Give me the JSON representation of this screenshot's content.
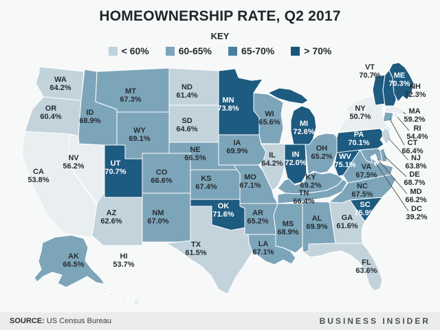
{
  "title": "HOMEOWNERSHIP RATE, Q2 2017",
  "key": {
    "label": "KEY",
    "bins": [
      {
        "label": "< 60%",
        "color": "#c0d2dc"
      },
      {
        "label": "60-65%",
        "color": "#7ca4ba"
      },
      {
        "label": "65-70%",
        "color": "#4a7ea0"
      },
      {
        "label": "> 70%",
        "color": "#1a567b"
      }
    ]
  },
  "footer": {
    "source_label": "SOURCE:",
    "source": "US Census Bureau",
    "brand": "BUSINESS INSIDER"
  },
  "colors": {
    "background": "#f7f8f8",
    "footer_bg": "#ebecec",
    "map_bands": [
      "#e9eef0",
      "#c2d3dc",
      "#7da5ba",
      "#1e5b80"
    ],
    "state_border": "#ffffff",
    "label_dark": "#262c31",
    "label_light": "#ffffff"
  },
  "chart_data": {
    "type": "heatmap",
    "subtype": "us-state-choropleth",
    "title": "HOMEOWNERSHIP RATE, Q2 2017",
    "unit": "%",
    "legend_position": "top",
    "legend_bins": [
      {
        "label": "< 60%",
        "range": [
          0,
          60
        ],
        "color": "#c0d2dc"
      },
      {
        "label": "60-65%",
        "range": [
          60,
          65
        ],
        "color": "#7ca4ba"
      },
      {
        "label": "65-70%",
        "range": [
          65,
          70
        ],
        "color": "#4a7ea0"
      },
      {
        "label": "> 70%",
        "range": [
          70,
          100
        ],
        "color": "#1a567b"
      }
    ],
    "states": [
      {
        "abbr": "WA",
        "value": 64.2,
        "band": 1
      },
      {
        "abbr": "OR",
        "value": 60.4,
        "band": 1
      },
      {
        "abbr": "CA",
        "value": 53.8,
        "band": 0
      },
      {
        "abbr": "NV",
        "value": 56.2,
        "band": 0
      },
      {
        "abbr": "ID",
        "value": 68.9,
        "band": 2
      },
      {
        "abbr": "MT",
        "value": 67.3,
        "band": 2
      },
      {
        "abbr": "WY",
        "value": 69.1,
        "band": 2
      },
      {
        "abbr": "UT",
        "value": 70.7,
        "band": 3
      },
      {
        "abbr": "CO",
        "value": 66.6,
        "band": 2
      },
      {
        "abbr": "AZ",
        "value": 62.6,
        "band": 1
      },
      {
        "abbr": "NM",
        "value": 67.0,
        "band": 2
      },
      {
        "abbr": "AK",
        "value": 66.5,
        "band": 2
      },
      {
        "abbr": "HI",
        "value": 53.7,
        "band": 0
      },
      {
        "abbr": "ND",
        "value": 61.4,
        "band": 1
      },
      {
        "abbr": "SD",
        "value": 64.6,
        "band": 1
      },
      {
        "abbr": "NE",
        "value": 66.5,
        "band": 2
      },
      {
        "abbr": "KS",
        "value": 67.4,
        "band": 2
      },
      {
        "abbr": "OK",
        "value": 71.6,
        "band": 3
      },
      {
        "abbr": "TX",
        "value": 61.5,
        "band": 1
      },
      {
        "abbr": "MN",
        "value": 73.8,
        "band": 3
      },
      {
        "abbr": "IA",
        "value": 69.9,
        "band": 2
      },
      {
        "abbr": "MO",
        "value": 67.1,
        "band": 2
      },
      {
        "abbr": "AR",
        "value": 65.2,
        "band": 2
      },
      {
        "abbr": "LA",
        "value": 67.1,
        "band": 2
      },
      {
        "abbr": "WI",
        "value": 65.6,
        "band": 2
      },
      {
        "abbr": "IL",
        "value": 64.2,
        "band": 1
      },
      {
        "abbr": "IN",
        "value": 72.0,
        "band": 3
      },
      {
        "abbr": "MI",
        "value": 72.6,
        "band": 3
      },
      {
        "abbr": "OH",
        "value": 65.2,
        "band": 2
      },
      {
        "abbr": "KY",
        "value": 69.2,
        "band": 2
      },
      {
        "abbr": "TN",
        "value": 66.4,
        "band": 2
      },
      {
        "abbr": "MS",
        "value": 68.9,
        "band": 2
      },
      {
        "abbr": "AL",
        "value": 69.9,
        "band": 2
      },
      {
        "abbr": "GA",
        "value": 61.6,
        "band": 1
      },
      {
        "abbr": "FL",
        "value": 63.6,
        "band": 1
      },
      {
        "abbr": "SC",
        "value": 75.9,
        "band": 3
      },
      {
        "abbr": "NC",
        "value": 67.5,
        "band": 2
      },
      {
        "abbr": "VA",
        "value": 67.5,
        "band": 2
      },
      {
        "abbr": "WV",
        "value": 75.1,
        "band": 3
      },
      {
        "abbr": "PA",
        "value": 70.1,
        "band": 3
      },
      {
        "abbr": "NY",
        "value": 50.7,
        "band": 0
      },
      {
        "abbr": "NJ",
        "value": 63.8,
        "band": 1
      },
      {
        "abbr": "CT",
        "value": 66.4,
        "band": 2
      },
      {
        "abbr": "RI",
        "value": 54.4,
        "band": 0
      },
      {
        "abbr": "MA",
        "value": 59.2,
        "band": 0
      },
      {
        "abbr": "VT",
        "value": 70.7,
        "band": 3
      },
      {
        "abbr": "NH",
        "value": 72.3,
        "band": 3
      },
      {
        "abbr": "ME",
        "value": 70.3,
        "band": 3
      },
      {
        "abbr": "DE",
        "value": 68.7,
        "band": 2
      },
      {
        "abbr": "MD",
        "value": 66.2,
        "band": 2
      },
      {
        "abbr": "DC",
        "value": 39.2,
        "band": 0
      }
    ]
  }
}
